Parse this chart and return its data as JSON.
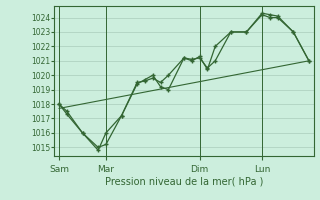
{
  "title": "",
  "xlabel": "Pression niveau de la mer( hPa )",
  "ylabel": "",
  "bg_color": "#cceedd",
  "grid_color": "#aaccbb",
  "line_color": "#336633",
  "text_color": "#336633",
  "ylim": [
    1014.4,
    1024.8
  ],
  "yticks": [
    1015,
    1016,
    1017,
    1018,
    1019,
    1020,
    1021,
    1022,
    1023,
    1024
  ],
  "day_labels": [
    "Sam",
    "Mar",
    "Dim",
    "Lun"
  ],
  "day_positions": [
    0,
    3,
    9,
    13
  ],
  "x_total": 16,
  "xlim": [
    -0.3,
    16.3
  ],
  "series1_x": [
    0,
    0.5,
    1.5,
    2.5,
    3,
    4,
    5,
    5.5,
    6,
    6.5,
    7,
    8,
    8.5,
    9,
    9.5,
    10,
    11,
    12,
    13,
    13.5,
    14,
    15,
    16
  ],
  "series1_y": [
    1018.0,
    1017.5,
    1016.0,
    1015.0,
    1015.2,
    1017.2,
    1019.5,
    1019.6,
    1019.8,
    1019.5,
    1020.0,
    1021.2,
    1021.1,
    1021.2,
    1020.5,
    1021.0,
    1023.0,
    1023.0,
    1024.2,
    1024.0,
    1024.0,
    1023.0,
    1021.0
  ],
  "series2_x": [
    0,
    0.5,
    1.5,
    2.5,
    3,
    4,
    5,
    5.5,
    6,
    6.5,
    7,
    8,
    8.5,
    9,
    9.5,
    10,
    11,
    12,
    13,
    13.5,
    14,
    15,
    16
  ],
  "series2_y": [
    1018.0,
    1017.3,
    1016.0,
    1014.8,
    1016.0,
    1017.2,
    1019.4,
    1019.7,
    1020.0,
    1019.2,
    1019.0,
    1021.2,
    1021.0,
    1021.3,
    1020.4,
    1022.0,
    1023.0,
    1023.0,
    1024.3,
    1024.2,
    1024.1,
    1023.0,
    1021.0
  ],
  "trend_x": [
    0,
    16
  ],
  "trend_y": [
    1017.7,
    1021.0
  ],
  "vline_positions": [
    0,
    3,
    9,
    13
  ]
}
